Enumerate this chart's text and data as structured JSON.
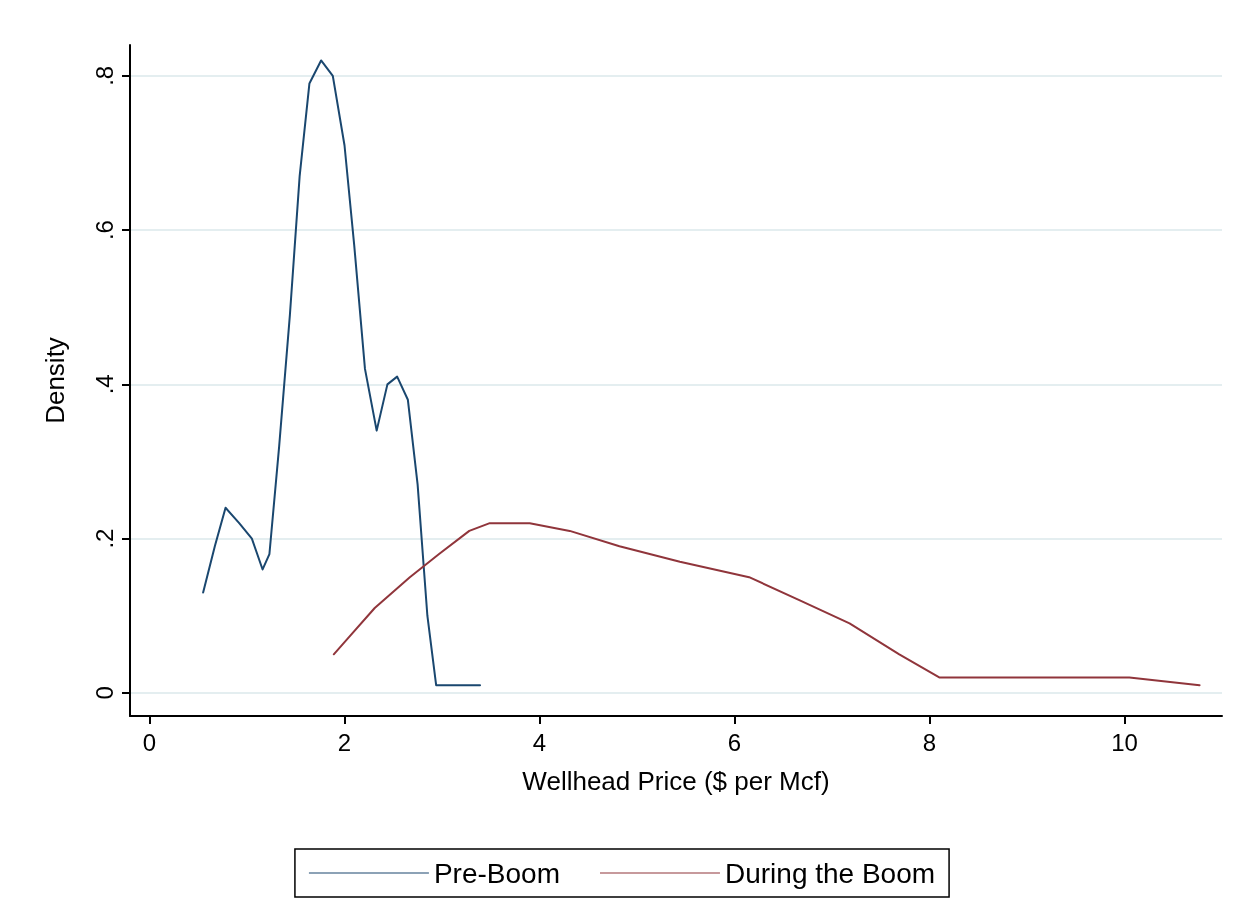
{
  "chart_data": {
    "type": "line",
    "xlabel": "Wellhead Price ($ per Mcf)",
    "ylabel": "Density",
    "xlim": [
      -0.2,
      11
    ],
    "xticks": [
      0,
      2,
      4,
      6,
      8,
      10
    ],
    "ylim": [
      -0.03,
      0.84
    ],
    "yticks": [
      0,
      {
        "value": 0.2,
        "label": ".2"
      },
      {
        "value": 0.4,
        "label": ".4"
      },
      {
        "value": 0.6,
        "label": ".6"
      },
      {
        "value": 0.8,
        "label": ".8"
      }
    ],
    "grid": "y",
    "legend": "bottom",
    "marker": "none",
    "line_style": "solid",
    "series": [
      {
        "name": "Pre-Boom",
        "color": "#1a476f",
        "x": [
          0.55,
          0.67,
          0.78,
          0.92,
          1.05,
          1.16,
          1.23,
          1.33,
          1.44,
          1.54,
          1.64,
          1.76,
          1.88,
          2.0,
          2.1,
          2.21,
          2.33,
          2.44,
          2.54,
          2.65,
          2.75,
          2.85,
          2.94,
          3.06,
          3.18,
          3.39
        ],
        "values": [
          0.13,
          0.19,
          0.24,
          0.22,
          0.2,
          0.16,
          0.18,
          0.32,
          0.49,
          0.67,
          0.79,
          0.82,
          0.8,
          0.71,
          0.58,
          0.42,
          0.34,
          0.4,
          0.41,
          0.38,
          0.27,
          0.1,
          0.01,
          0.01,
          0.01,
          0.01
        ]
      },
      {
        "name": "During the Boom",
        "color": "#90353b",
        "x": [
          1.89,
          2.03,
          2.31,
          2.67,
          2.97,
          3.28,
          3.49,
          3.9,
          4.31,
          4.82,
          5.44,
          6.15,
          6.67,
          7.18,
          7.69,
          8.1,
          8.72,
          9.33,
          10.05,
          10.77
        ],
        "values": [
          0.05,
          0.07,
          0.11,
          0.15,
          0.18,
          0.21,
          0.22,
          0.22,
          0.21,
          0.19,
          0.17,
          0.15,
          0.12,
          0.09,
          0.05,
          0.02,
          0.02,
          0.02,
          0.02,
          0.01
        ]
      }
    ]
  }
}
